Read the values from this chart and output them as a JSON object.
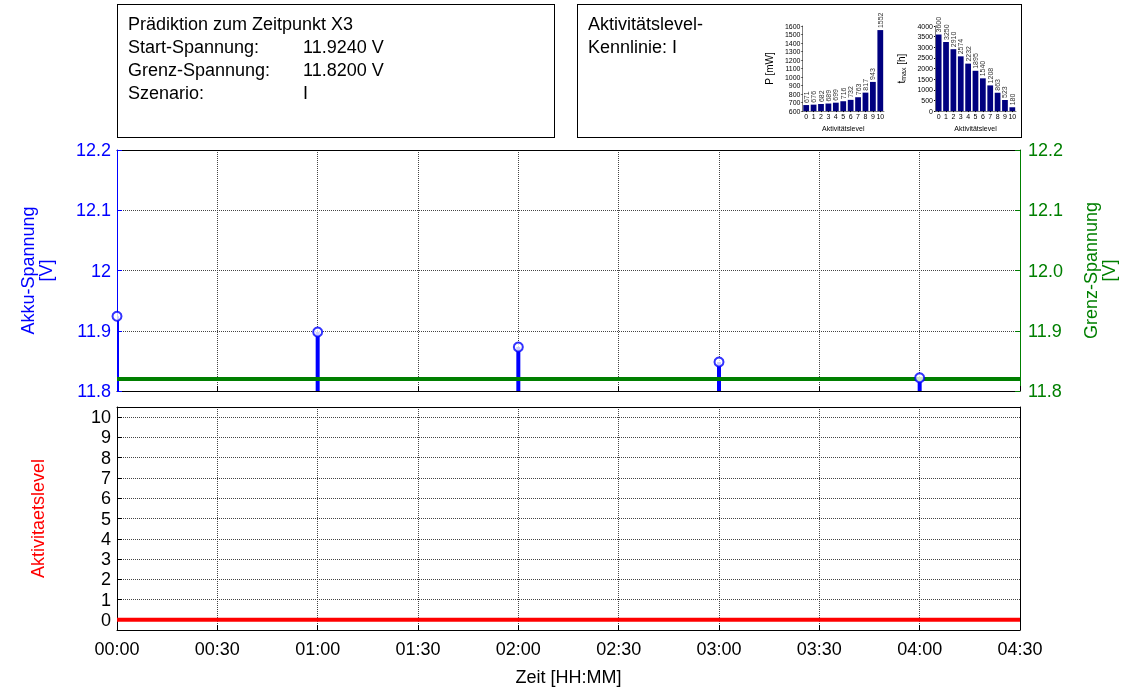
{
  "chart_data": [
    {
      "type": "other",
      "title": "Prädiktion zum Zeitpunkt X3",
      "annotations": [
        "Start-Spannung:",
        "11.9240 V",
        "Grenz-Spannung:",
        "11.8200 V",
        "Szenario:",
        "I"
      ]
    },
    {
      "type": "other",
      "title": "Aktivitätslevel-\nKennlinie: I"
    },
    {
      "type": "bar",
      "xlabel": "Aktivitätslevel",
      "ylabel": "P [mW]",
      "categories": [
        "0",
        "1",
        "2",
        "3",
        "4",
        "5",
        "6",
        "7",
        "8",
        "9",
        "10"
      ],
      "values": [
        671,
        676,
        682,
        689,
        699,
        716,
        732,
        763,
        817,
        943,
        1552
      ],
      "color": "#00007f",
      "ylim": [
        600,
        1600
      ],
      "yticks": [
        600,
        700,
        800,
        900,
        1000,
        1100,
        1200,
        1300,
        1400,
        1500,
        1600
      ],
      "data_labels": true
    },
    {
      "type": "bar",
      "xlabel": "Aktivitätslevel",
      "ylabel": "t$_{max}$ [h]",
      "categories": [
        "0",
        "1",
        "2",
        "3",
        "4",
        "5",
        "6",
        "7",
        "8",
        "9",
        "10"
      ],
      "values": [
        3600,
        3250,
        2910,
        2574,
        2232,
        1895,
        1540,
        1208,
        863,
        523,
        180
      ],
      "color": "#00007f",
      "ylim": [
        0,
        4000
      ],
      "yticks": [
        0,
        500,
        1000,
        1500,
        2000,
        2500,
        3000,
        3500,
        4000
      ],
      "data_labels": true
    },
    {
      "type": "lollipop",
      "ylabel": "Akku-Spannung\n[V]",
      "y2label": "Grenz-Spannung\n[V]",
      "x": [
        0,
        1,
        2,
        3,
        4
      ],
      "xlim": [
        0,
        4.5
      ],
      "xticks": [
        0,
        0.5,
        1,
        1.5,
        2,
        2.5,
        3,
        3.5,
        4,
        4.5
      ],
      "ylim": [
        11.8,
        12.2
      ],
      "yticks": [
        11.8,
        11.9,
        12,
        12.1,
        12.2
      ],
      "y2lim": [
        11.8,
        12.2
      ],
      "y2ticks": [
        11.8,
        11.9,
        {
          "value": 12,
          "label": "12.0"
        },
        12.1,
        12.2
      ],
      "tick_labels": "y",
      "grid": true,
      "series": [
        {
          "color": "#0000ff",
          "values": [
            11.924,
            11.898,
            11.873,
            11.848,
            11.822
          ],
          "marker": "circle"
        },
        {
          "type": "line",
          "axis": "y2",
          "x": [
            0,
            4.5
          ],
          "values": [
            11.82,
            11.82
          ],
          "color": "#007f00",
          "marker": "none"
        }
      ]
    },
    {
      "type": "line",
      "xlabel": "Zeit [HH:MM]",
      "ylabel": "Aktivitaetslevel",
      "x": [
        0,
        4.5
      ],
      "xlim": [
        0,
        4.5
      ],
      "xticks": [
        {
          "value": 0,
          "label": "00:00"
        },
        {
          "value": 0.5,
          "label": "00:30"
        },
        {
          "value": 1,
          "label": "01:00"
        },
        {
          "value": 1.5,
          "label": "01:30"
        },
        {
          "value": 2,
          "label": "02:00"
        },
        {
          "value": 2.5,
          "label": "02:30"
        },
        {
          "value": 3,
          "label": "03:00"
        },
        {
          "value": 3.5,
          "label": "03:30"
        },
        {
          "value": 4,
          "label": "04:00"
        },
        {
          "value": 4.5,
          "label": "04:30"
        }
      ],
      "ylim": [
        -0.5,
        10.5
      ],
      "yticks": [
        0,
        1,
        2,
        3,
        4,
        5,
        6,
        7,
        8,
        9,
        10
      ],
      "grid": true,
      "marker": "none",
      "series": [
        {
          "color": "#ff0000",
          "values": [
            0,
            0
          ]
        }
      ]
    }
  ]
}
